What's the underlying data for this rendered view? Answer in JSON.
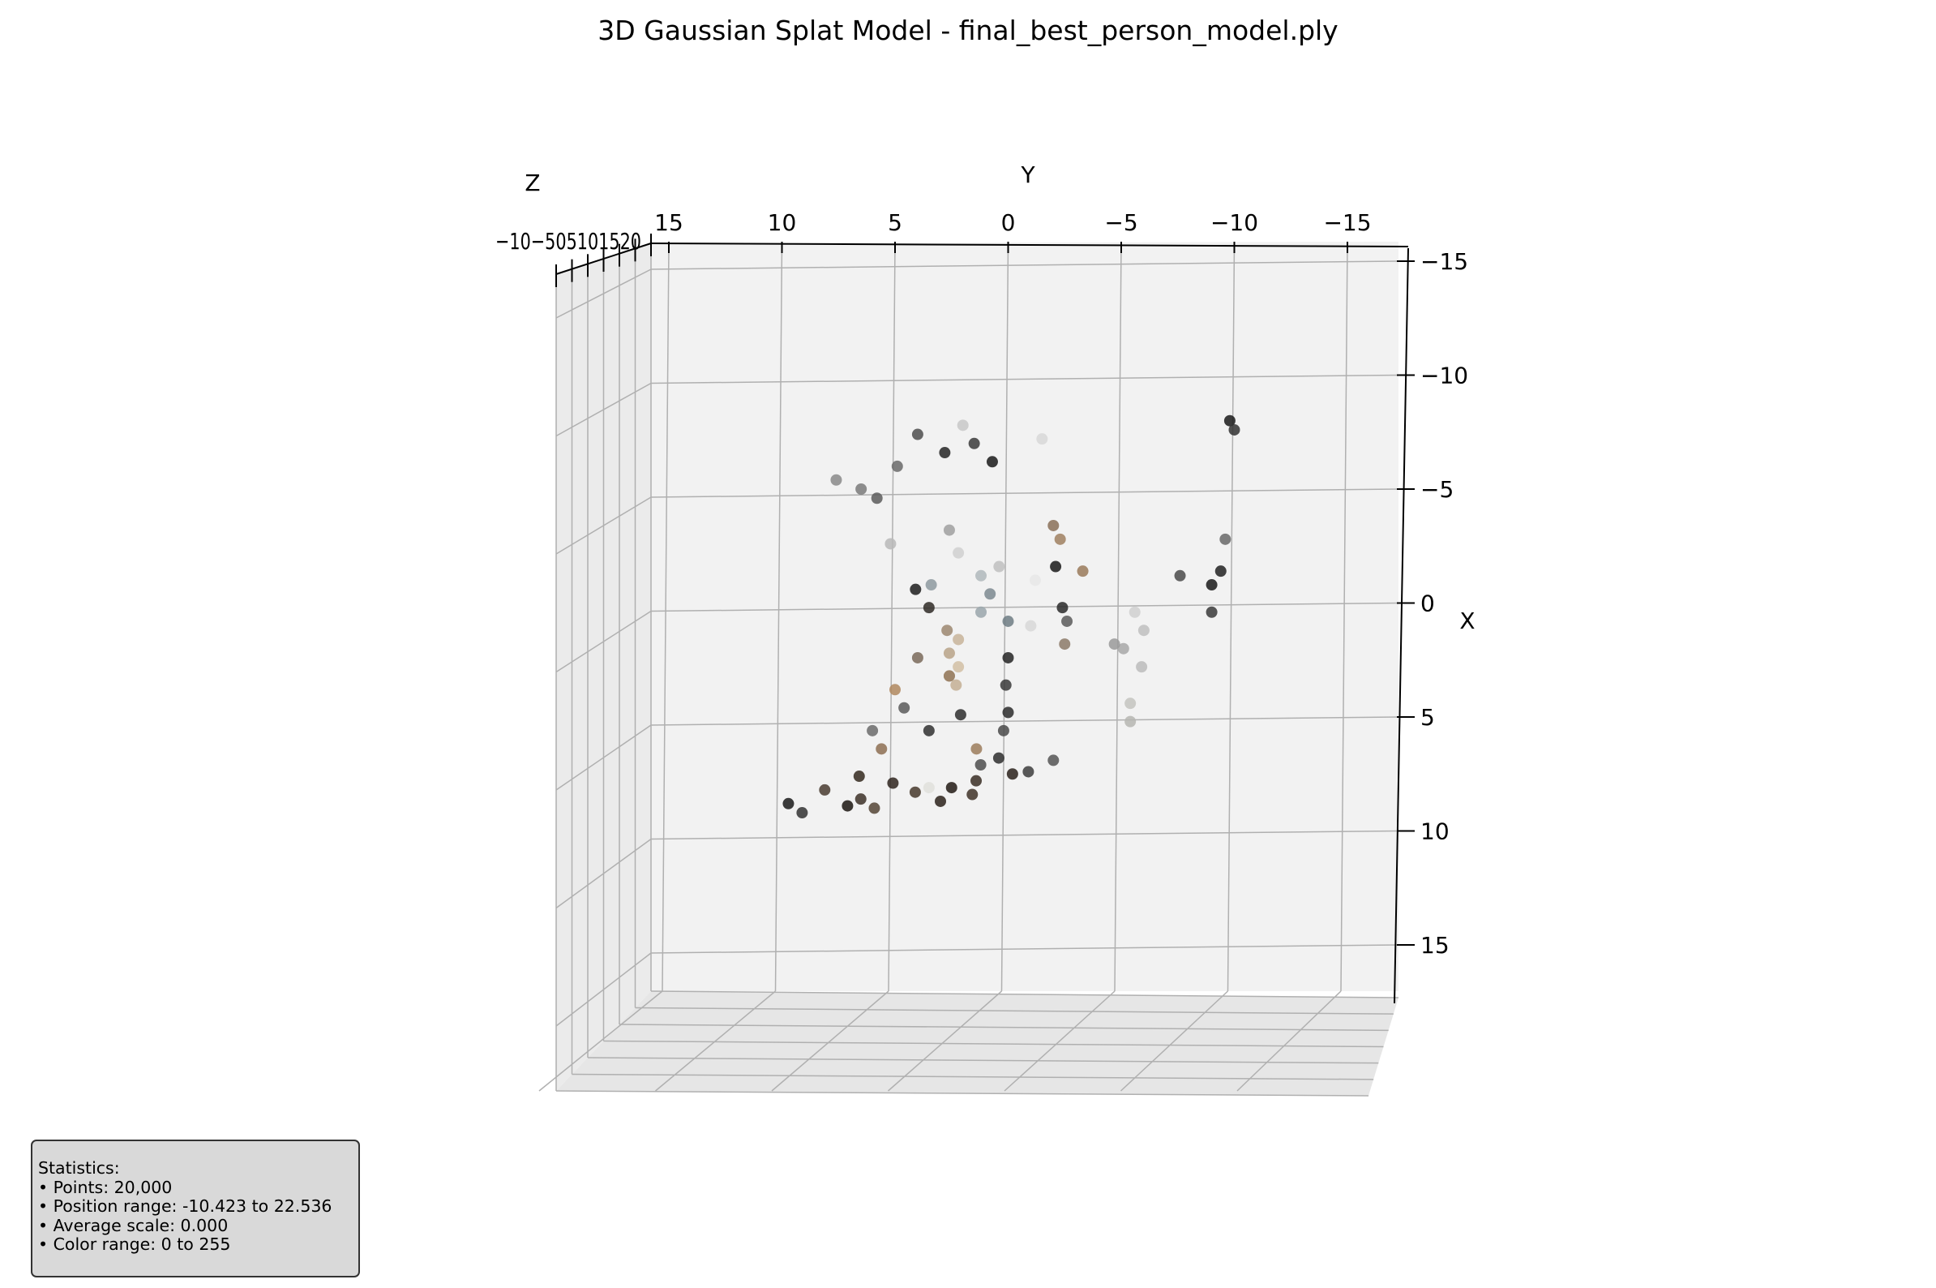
{
  "chart_data": {
    "type": "scatter",
    "title": "3D Gaussian Splat Model - final_best_person_model.ply",
    "xlabel": "X",
    "ylabel": "Y",
    "zlabel": "Z",
    "xlim": [
      -15,
      15
    ],
    "ylim": [
      -15,
      15
    ],
    "zlim": [
      -10,
      20
    ],
    "y_ticks": [
      "15",
      "10",
      "5",
      "0",
      "−5",
      "−10",
      "−15"
    ],
    "x_ticks": [
      "−15",
      "−10",
      "−5",
      "0",
      "5",
      "10",
      "15"
    ],
    "z_ticks_label_text": "−10−505101520",
    "grid": true,
    "view": "3d perspective, looking along the Z axis",
    "series": [
      {
        "points": [
          {
            "x": 7.5,
            "y": -0.3,
            "z": 3,
            "color": "#2a211b"
          },
          {
            "x": 7.8,
            "y": 1.2,
            "z": 2,
            "color": "#3a2e25"
          },
          {
            "x": 8.1,
            "y": 2.5,
            "z": 4,
            "color": "#221a14"
          },
          {
            "x": 8.3,
            "y": 4.0,
            "z": 3,
            "color": "#47382c"
          },
          {
            "x": 7.9,
            "y": 5.2,
            "z": 5,
            "color": "#2f251e"
          },
          {
            "x": 8.6,
            "y": 6.3,
            "z": 2,
            "color": "#3d3128"
          },
          {
            "x": 8.9,
            "y": 7.1,
            "z": 4,
            "color": "#1c1612"
          },
          {
            "x": 8.2,
            "y": 8.0,
            "z": 3,
            "color": "#4a3c31"
          },
          {
            "x": 7.6,
            "y": 6.8,
            "z": 6,
            "color": "#34291f"
          },
          {
            "x": 8.7,
            "y": 3.1,
            "z": 5,
            "color": "#2b221b"
          },
          {
            "x": 9.0,
            "y": 5.7,
            "z": 2,
            "color": "#554536"
          },
          {
            "x": 8.4,
            "y": 1.8,
            "z": 6,
            "color": "#3f3328"
          },
          {
            "x": 7.1,
            "y": 1.0,
            "z": 2,
            "color": "#4d4d4d"
          },
          {
            "x": 6.8,
            "y": 0.2,
            "z": 2,
            "color": "#2e2e2e"
          },
          {
            "x": 7.4,
            "y": -1.0,
            "z": 3,
            "color": "#3d3d3d"
          },
          {
            "x": 6.9,
            "y": -2.0,
            "z": 4,
            "color": "#555555"
          },
          {
            "x": 9.2,
            "y": 9.0,
            "z": 3,
            "color": "#333333"
          },
          {
            "x": 8.8,
            "y": 9.5,
            "z": 2,
            "color": "#1a1a1a"
          },
          {
            "x": 4.8,
            "y": 0.0,
            "z": 4,
            "color": "#2b2b2b"
          },
          {
            "x": 3.6,
            "y": 0.1,
            "z": 4,
            "color": "#3a3a3a"
          },
          {
            "x": 2.4,
            "y": 0.0,
            "z": 4,
            "color": "#242424"
          },
          {
            "x": 5.6,
            "y": 0.2,
            "z": 4,
            "color": "#4a4a4a"
          },
          {
            "x": 1.6,
            "y": 2.2,
            "z": 4,
            "color": "#c8b49a"
          },
          {
            "x": 2.2,
            "y": 2.6,
            "z": 4,
            "color": "#b8a388"
          },
          {
            "x": 2.8,
            "y": 2.2,
            "z": 4,
            "color": "#d2bfa5"
          },
          {
            "x": 3.2,
            "y": 2.6,
            "z": 4,
            "color": "#a89379"
          },
          {
            "x": 3.6,
            "y": 2.3,
            "z": 4,
            "color": "#c4af94"
          },
          {
            "x": 1.2,
            "y": 2.7,
            "z": 4,
            "color": "#9c8770"
          },
          {
            "x": 0.2,
            "y": 3.5,
            "z": 4,
            "color": "#2f2a26"
          },
          {
            "x": -0.6,
            "y": 4.2,
            "z": 5,
            "color": "#1d1d1d"
          },
          {
            "x": -1.2,
            "y": 1.2,
            "z": 4,
            "color": "#b0b8bc"
          },
          {
            "x": -0.4,
            "y": 0.8,
            "z": 4,
            "color": "#7d8a90"
          },
          {
            "x": 0.4,
            "y": 1.2,
            "z": 4,
            "color": "#9aa6ab"
          },
          {
            "x": -1.6,
            "y": 0.4,
            "z": 4,
            "color": "#c0c0c0"
          },
          {
            "x": 0.8,
            "y": 0.0,
            "z": 4,
            "color": "#6f7d84"
          },
          {
            "x": -0.8,
            "y": 3.4,
            "z": 4,
            "color": "#8e9aa0"
          },
          {
            "x": -2.2,
            "y": 2.2,
            "z": 4,
            "color": "#d0d0d0"
          },
          {
            "x": 2.4,
            "y": 4.0,
            "z": 4,
            "color": "#7a6a5a"
          },
          {
            "x": 3.2,
            "y": 2.6,
            "z": 4,
            "color": "#9a8064"
          },
          {
            "x": 5.6,
            "y": 3.5,
            "z": 4,
            "color": "#303030"
          },
          {
            "x": 4.6,
            "y": 4.6,
            "z": 4,
            "color": "#5a5a5a"
          },
          {
            "x": 3.8,
            "y": 5.0,
            "z": 4,
            "color": "#b0885f"
          },
          {
            "x": 5.6,
            "y": 6.0,
            "z": 4,
            "color": "#6b6b6b"
          },
          {
            "x": 6.4,
            "y": 5.6,
            "z": 4,
            "color": "#8d6e52"
          },
          {
            "x": -6.2,
            "y": 0.7,
            "z": 4,
            "color": "#1a1a1a"
          },
          {
            "x": -7.0,
            "y": 1.5,
            "z": 4,
            "color": "#3a3a3a"
          },
          {
            "x": -6.6,
            "y": 2.8,
            "z": 4,
            "color": "#262626"
          },
          {
            "x": -7.4,
            "y": 4.0,
            "z": 4,
            "color": "#4d4d4d"
          },
          {
            "x": -6.0,
            "y": 4.9,
            "z": 4,
            "color": "#6a6a6a"
          },
          {
            "x": -7.8,
            "y": 2.0,
            "z": 4,
            "color": "#c8c8c8"
          },
          {
            "x": -5.0,
            "y": 6.5,
            "z": 4,
            "color": "#7a7a7a"
          },
          {
            "x": -4.6,
            "y": 5.8,
            "z": 4,
            "color": "#5c5c5c"
          },
          {
            "x": -5.4,
            "y": 7.6,
            "z": 4,
            "color": "#8a8a8a"
          },
          {
            "x": -7.2,
            "y": -1.5,
            "z": 4,
            "color": "#d8d8d8"
          },
          {
            "x": -3.2,
            "y": 2.6,
            "z": 4,
            "color": "#a0a0a0"
          },
          {
            "x": -2.6,
            "y": 5.2,
            "z": 4,
            "color": "#b8b8b8"
          },
          {
            "x": -8.0,
            "y": -9.8,
            "z": 4,
            "color": "#1a1a1a"
          },
          {
            "x": -7.6,
            "y": -10.0,
            "z": 4,
            "color": "#333333"
          },
          {
            "x": -0.8,
            "y": -9.0,
            "z": 4,
            "color": "#1a1a1a"
          },
          {
            "x": -1.4,
            "y": -9.4,
            "z": 4,
            "color": "#222222"
          },
          {
            "x": 0.4,
            "y": -9.0,
            "z": 4,
            "color": "#3a3a3a"
          },
          {
            "x": -2.8,
            "y": -9.6,
            "z": 4,
            "color": "#6a6a6a"
          },
          {
            "x": -1.2,
            "y": -7.6,
            "z": 4,
            "color": "#4a4a4a"
          },
          {
            "x": 5.2,
            "y": -5.4,
            "z": 4,
            "color": "#b6b6b2"
          },
          {
            "x": 4.4,
            "y": -5.4,
            "z": 4,
            "color": "#c4c4c0"
          },
          {
            "x": 2.0,
            "y": -5.1,
            "z": 4,
            "color": "#a8a8a8"
          },
          {
            "x": 1.2,
            "y": -6.0,
            "z": 4,
            "color": "#c0c0c0"
          },
          {
            "x": 0.4,
            "y": -5.6,
            "z": 4,
            "color": "#d0d0d0"
          },
          {
            "x": 2.8,
            "y": -5.9,
            "z": 4,
            "color": "#bcbcbc"
          },
          {
            "x": 1.8,
            "y": -4.7,
            "z": 4,
            "color": "#9a9a9a"
          },
          {
            "x": 1.8,
            "y": -2.5,
            "z": 4,
            "color": "#8c7a68"
          },
          {
            "x": 0.2,
            "y": -2.4,
            "z": 4,
            "color": "#2a2a2a"
          },
          {
            "x": -1.4,
            "y": -3.3,
            "z": 4,
            "color": "#9a7a5a"
          },
          {
            "x": -1.6,
            "y": -2.1,
            "z": 4,
            "color": "#1a1a1a"
          },
          {
            "x": -2.8,
            "y": -2.3,
            "z": 4,
            "color": "#a08060"
          },
          {
            "x": -3.4,
            "y": -2.0,
            "z": 4,
            "color": "#8a7058"
          },
          {
            "x": 0.8,
            "y": -2.6,
            "z": 4,
            "color": "#5a5a5a"
          },
          {
            "x": 1.0,
            "y": -1.0,
            "z": 4,
            "color": "#d8d8d8"
          },
          {
            "x": -1.0,
            "y": -1.2,
            "z": 4,
            "color": "#e8e8e8"
          },
          {
            "x": 6.4,
            "y": 1.4,
            "z": 4,
            "color": "#9c7d5c"
          },
          {
            "x": 4.9,
            "y": 2.1,
            "z": 4,
            "color": "#2e2e2e"
          },
          {
            "x": 8.1,
            "y": 3.5,
            "z": 4,
            "color": "#e0e0dc"
          }
        ]
      }
    ]
  },
  "stats": {
    "heading": "Statistics:",
    "points": "• Points: 20,000",
    "position_range": "• Position range: -10.423 to 22.536",
    "average_scale": "• Average scale: 0.000",
    "color_range": "• Color range: 0 to 255"
  },
  "colors": {
    "pane_fill": "#f2f2f2",
    "grid": "#b0b0b0",
    "axis": "#000000",
    "stats_background": "#d9d9d9"
  }
}
